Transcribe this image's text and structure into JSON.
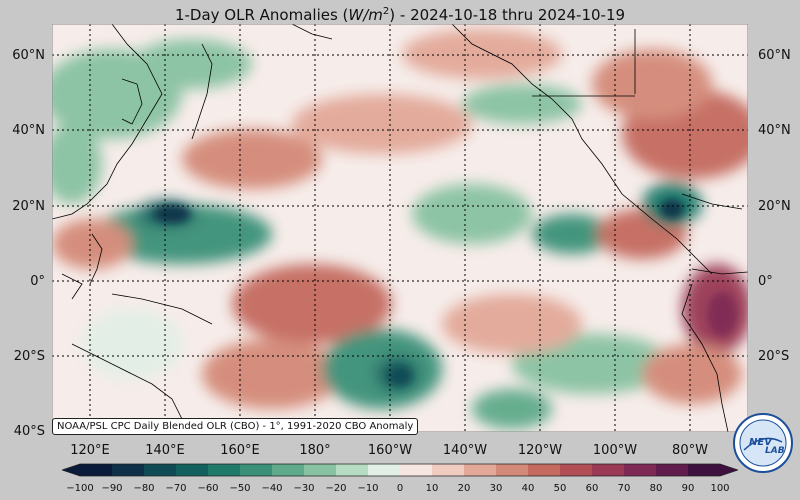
{
  "title": {
    "prefix": "1-Day OLR Anomalies (",
    "unit_italic": "W/m",
    "unit_exp": "2",
    "suffix": ") - 2024-10-18 thru 2024-10-19"
  },
  "lat_labels": [
    "60°N",
    "40°N",
    "20°N",
    "0°",
    "20°S",
    "40°S"
  ],
  "lon_labels": [
    "120°E",
    "140°E",
    "160°E",
    "180°",
    "160°W",
    "140°W",
    "120°W",
    "100°W",
    "80°W"
  ],
  "source_label": "NOAA/PSL CPC Daily Blended OLR (CBO) - 1°, 1991-2020 CBO Anomaly",
  "colorbar": {
    "ticks": [
      "−100",
      "−90",
      "−80",
      "−70",
      "−60",
      "−50",
      "−40",
      "−30",
      "−20",
      "−10",
      "0",
      "10",
      "20",
      "30",
      "40",
      "50",
      "60",
      "70",
      "80",
      "90",
      "100"
    ],
    "colors": [
      "#0a1a3a",
      "#0d3048",
      "#0f4a55",
      "#13615e",
      "#1f7a6a",
      "#3a9178",
      "#5eaa8a",
      "#88c2a2",
      "#b7dcc4",
      "#e2efe6",
      "#f6e6e1",
      "#efcbc0",
      "#e2a898",
      "#d48a78",
      "#c46a5e",
      "#b24f55",
      "#9a3a55",
      "#7e2a55",
      "#5f1c4d",
      "#3e1040"
    ]
  },
  "logo": {
    "text_nev": "NEV",
    "text_lab": "LAB"
  },
  "colors": {
    "land_outline": "#000000",
    "grid": "#000000",
    "background": "#c8c8c8"
  }
}
